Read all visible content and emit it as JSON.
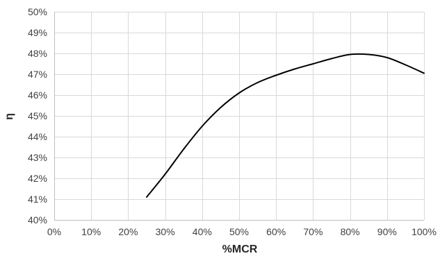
{
  "chart_data": {
    "type": "line",
    "title": "",
    "xlabel": "%MCR",
    "ylabel": "η",
    "xlim": [
      0,
      100
    ],
    "ylim": [
      40,
      50
    ],
    "x_ticks": [
      "0%",
      "10%",
      "20%",
      "30%",
      "40%",
      "50%",
      "60%",
      "70%",
      "80%",
      "90%",
      "100%"
    ],
    "y_ticks": [
      "40%",
      "41%",
      "42%",
      "43%",
      "44%",
      "45%",
      "46%",
      "47%",
      "48%",
      "49%",
      "50%"
    ],
    "grid": true,
    "legend": "none",
    "series": [
      {
        "color": "#000000",
        "x": [
          25,
          30,
          35,
          40,
          45,
          50,
          55,
          60,
          65,
          70,
          75,
          80,
          85,
          90,
          95,
          100
        ],
        "y": [
          41.1,
          42.2,
          43.4,
          44.5,
          45.4,
          46.1,
          46.6,
          46.95,
          47.25,
          47.5,
          47.75,
          47.95,
          47.95,
          47.8,
          47.45,
          47.05
        ]
      }
    ]
  }
}
